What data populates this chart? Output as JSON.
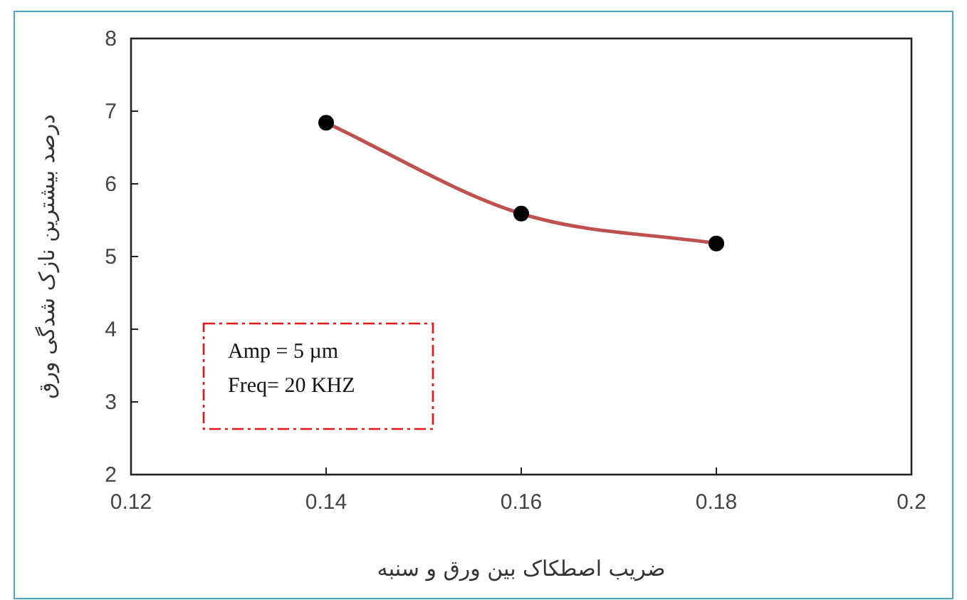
{
  "chart_data": {
    "type": "line",
    "xlabel": "ضریب اصطکاک بین ورق و سنبه",
    "ylabel": "درصد بیشترین نازک شدگی ورق",
    "x": [
      0.14,
      0.16,
      0.18
    ],
    "series": [
      {
        "color": "#c0504d",
        "values": [
          6.84,
          5.59,
          5.18
        ]
      }
    ],
    "marker": "circle",
    "xlim": [
      0.12,
      0.2
    ],
    "xticks": [
      0.12,
      0.14,
      0.16,
      0.18,
      0.2
    ],
    "ylim": [
      2,
      8
    ],
    "yticks": [
      2,
      3,
      4,
      5,
      6,
      7,
      8
    ],
    "annotations": [
      "Amp = 5 µm",
      "Freq= 20 KHZ"
    ]
  }
}
